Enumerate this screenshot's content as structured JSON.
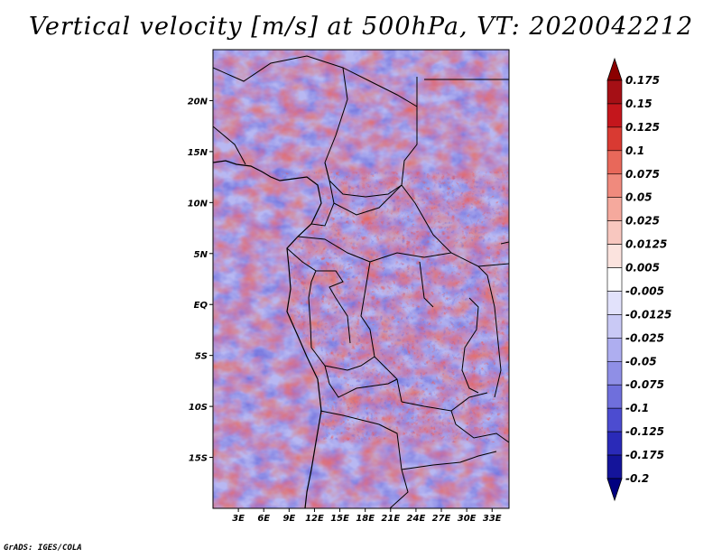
{
  "title": "Vertical velocity [m/s] at 500hPa, VT: 2020042212",
  "footer": "GrADS: IGES/COLA",
  "map": {
    "lat_labels": [
      "20N",
      "15N",
      "10N",
      "5N",
      "EQ",
      "5S",
      "10S",
      "15S"
    ],
    "lon_labels": [
      "3E",
      "6E",
      "9E",
      "12E",
      "15E",
      "18E",
      "21E",
      "24E",
      "27E",
      "30E",
      "33E"
    ]
  },
  "colorbar": {
    "labels": [
      "0.175",
      "0.15",
      "0.125",
      "0.1",
      "0.075",
      "0.05",
      "0.025",
      "0.0125",
      "0.005",
      "-0.005",
      "-0.0125",
      "-0.025",
      "-0.05",
      "-0.075",
      "-0.1",
      "-0.125",
      "-0.175",
      "-0.2"
    ],
    "colors": [
      "#8b0000",
      "#a50f15",
      "#c4161c",
      "#d93a32",
      "#e8685a",
      "#f08a7d",
      "#f5a99d",
      "#f8c7bf",
      "#fbe3de",
      "#ffffff",
      "#e2e2fb",
      "#c9c9f5",
      "#aeaef0",
      "#8f8fe6",
      "#6f6fdc",
      "#4c4cd0",
      "#2a2ab8",
      "#14149a",
      "#000080"
    ]
  },
  "chart_data": {
    "type": "heatmap",
    "title": "Vertical velocity [m/s] at 500hPa, VT: 2020042212",
    "variable": "Vertical velocity",
    "units": "m/s",
    "level": "500hPa",
    "valid_time": "2020042212",
    "x_ticks": [
      "3E",
      "6E",
      "9E",
      "12E",
      "15E",
      "18E",
      "21E",
      "24E",
      "27E",
      "30E",
      "33E"
    ],
    "y_ticks": [
      "20N",
      "15N",
      "10N",
      "5N",
      "EQ",
      "5S",
      "10S",
      "15S"
    ],
    "xlim": [
      0,
      35
    ],
    "ylim": [
      -20,
      25
    ],
    "color_levels": [
      -0.2,
      -0.175,
      -0.125,
      -0.1,
      -0.075,
      -0.05,
      -0.025,
      -0.0125,
      -0.005,
      0.005,
      0.0125,
      0.025,
      0.05,
      0.075,
      0.1,
      0.125,
      0.15,
      0.175
    ]
  }
}
